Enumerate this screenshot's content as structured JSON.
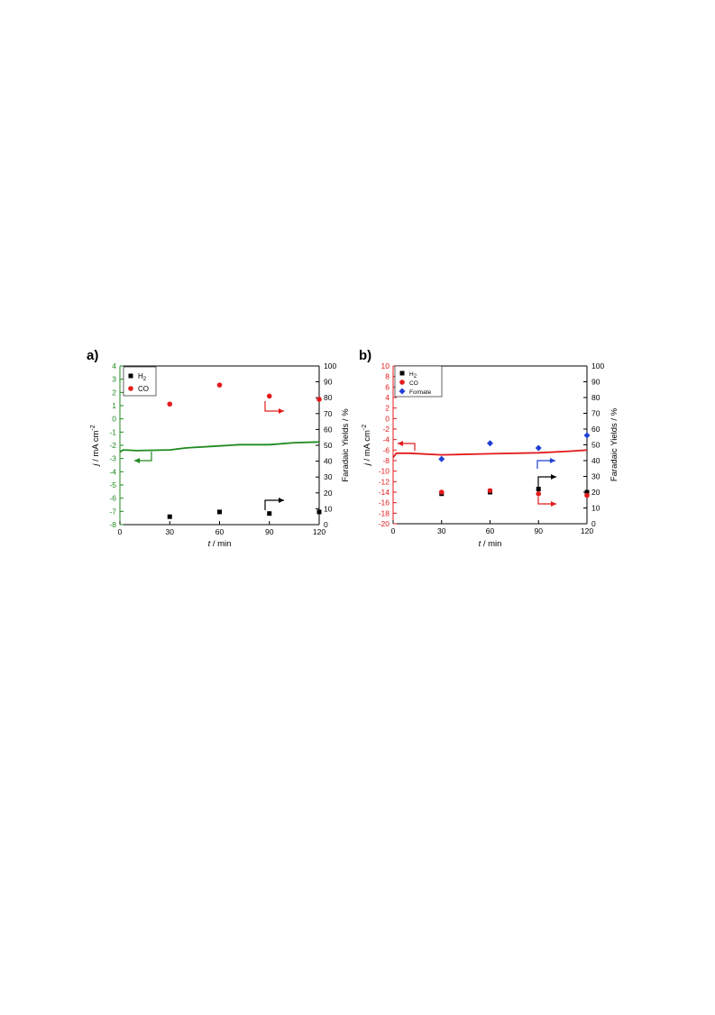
{
  "figure": {
    "charts": [
      {
        "panel_label": "a)",
        "left_axis_color": "#1e8a1e",
        "curve_color": "#1e8a1e",
        "left_axis_label_prefix": "j",
        "left_axis_label_unit": " / mA cm",
        "left_axis_label_sup": "-2",
        "right_axis_label": "Faradaic Yields / %",
        "x_label_prefix": "t",
        "x_label_unit": " / min",
        "legend": [
          {
            "label": "H",
            "sub": "2",
            "color": "#000000",
            "marker": "square"
          },
          {
            "label": "CO",
            "sub": "",
            "color": "#e31a1c",
            "marker": "circle"
          }
        ]
      },
      {
        "panel_label": "b)",
        "left_axis_color": "#e31a1c",
        "curve_color": "#e31a1c",
        "left_axis_label_prefix": "j",
        "left_axis_label_unit": " / mA cm",
        "left_axis_label_sup": "-2",
        "right_axis_label": "Faradaic Yields / %",
        "x_label_prefix": "t",
        "x_label_unit": " / min",
        "legend": [
          {
            "label": "H",
            "sub": "2",
            "color": "#000000",
            "marker": "square"
          },
          {
            "label": "CO",
            "sub": "",
            "color": "#e31a1c",
            "marker": "circle"
          },
          {
            "label": "Formate",
            "sub": "",
            "color": "#1f3fd6",
            "marker": "diamond"
          }
        ]
      }
    ]
  },
  "chart_data": [
    {
      "type": "line",
      "xlim": [
        0,
        120
      ],
      "x_ticks": [
        0,
        30,
        60,
        90,
        120
      ],
      "ylim_left": [
        -8,
        4
      ],
      "y_left_ticks": [
        -8,
        -7,
        -6,
        -5,
        -4,
        -3,
        -2,
        -1,
        0,
        1,
        2,
        3,
        4
      ],
      "ylim_right": [
        0,
        100
      ],
      "y_right_ticks": [
        0,
        10,
        20,
        30,
        40,
        50,
        60,
        70,
        80,
        90,
        100
      ],
      "current_density": {
        "axis": "left",
        "x": [
          0,
          2,
          10,
          30,
          40,
          60,
          72,
          90,
          105,
          120
        ],
        "y": [
          -2.5,
          -2.35,
          -2.4,
          -2.35,
          -2.2,
          -2.05,
          -1.95,
          -1.95,
          -1.8,
          -1.75
        ]
      },
      "series": [
        {
          "name": "H2",
          "axis": "right",
          "x": [
            30,
            60,
            90,
            120
          ],
          "y": [
            5,
            8,
            7,
            8
          ]
        },
        {
          "name": "CO",
          "axis": "right",
          "x": [
            30,
            60,
            90,
            120
          ],
          "y": [
            76,
            88,
            81,
            79
          ]
        }
      ]
    },
    {
      "type": "line",
      "xlim": [
        0,
        120
      ],
      "x_ticks": [
        0,
        30,
        60,
        90,
        120
      ],
      "ylim_left": [
        -20,
        10
      ],
      "y_left_ticks": [
        -20,
        -18,
        -16,
        -14,
        -12,
        -10,
        -8,
        -6,
        -4,
        -2,
        0,
        2,
        4,
        6,
        8,
        10
      ],
      "ylim_right": [
        0,
        100
      ],
      "y_right_ticks": [
        0,
        10,
        20,
        30,
        40,
        50,
        60,
        70,
        80,
        90,
        100
      ],
      "current_density": {
        "axis": "left",
        "x": [
          0,
          2,
          10,
          30,
          60,
          90,
          110,
          120
        ],
        "y": [
          -7.4,
          -6.6,
          -6.6,
          -6.9,
          -6.7,
          -6.5,
          -6.2,
          -6.0
        ]
      },
      "series": [
        {
          "name": "H2",
          "axis": "right",
          "x": [
            30,
            60,
            90,
            120
          ],
          "y": [
            19,
            20,
            22,
            20
          ]
        },
        {
          "name": "CO",
          "axis": "right",
          "x": [
            30,
            60,
            90,
            120
          ],
          "y": [
            20,
            21,
            19,
            18
          ]
        },
        {
          "name": "Formate",
          "axis": "right",
          "x": [
            30,
            60,
            90,
            120
          ],
          "y": [
            41,
            51,
            48,
            56
          ]
        }
      ]
    }
  ]
}
